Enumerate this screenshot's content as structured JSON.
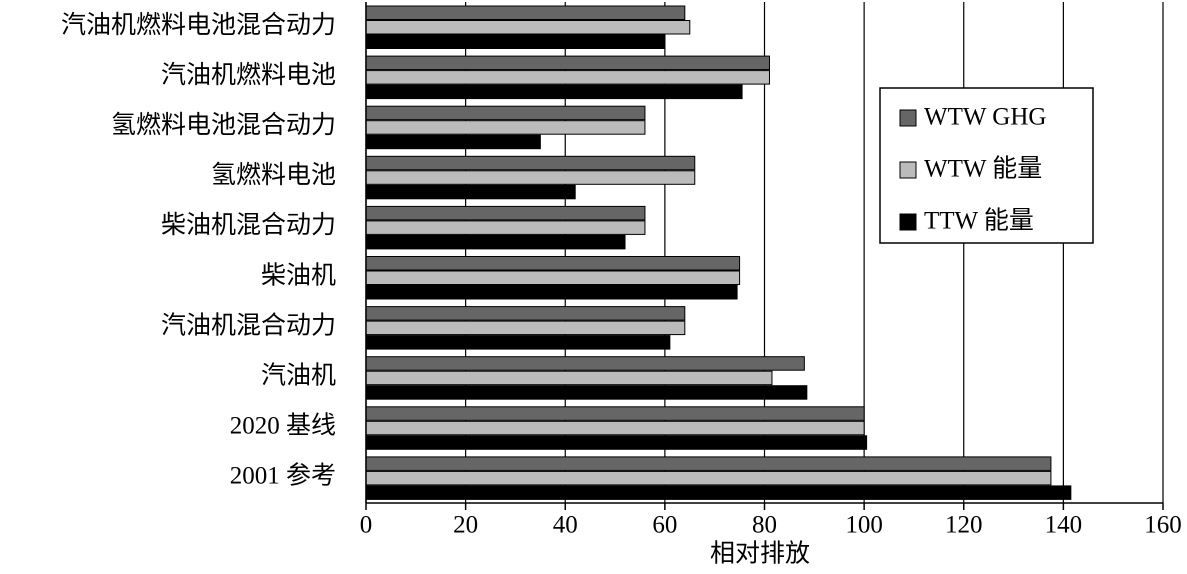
{
  "chart_data": {
    "type": "bar",
    "orientation": "horizontal",
    "xlabel": "相对排放",
    "categories": [
      "汽油机燃料电池混合动力",
      "汽油机燃料电池",
      "氢燃料电池混合动力",
      "氢燃料电池",
      "柴油机混合动力",
      "柴油机",
      "汽油机混合动力",
      "汽油机",
      "2020 基线",
      "2001 参考"
    ],
    "series": [
      {
        "name": "WTW GHG",
        "color": "#666666",
        "values": [
          64,
          81,
          56,
          66,
          56,
          75,
          64,
          88,
          100,
          137.5
        ]
      },
      {
        "name": "WTW 能量",
        "color": "#bbbbbb",
        "values": [
          65,
          81,
          56,
          66,
          56,
          75,
          64,
          81.5,
          100,
          137.5
        ]
      },
      {
        "name": "TTW 能量",
        "color": "#000000",
        "values": [
          60,
          75.5,
          35,
          42,
          52,
          74.5,
          61,
          88.5,
          100.5,
          141.5
        ]
      }
    ],
    "xlim": [
      0,
      160
    ],
    "xticks": [
      0,
      20,
      40,
      60,
      80,
      100,
      120,
      140,
      160
    ],
    "grid": true,
    "legend": "upper right"
  }
}
